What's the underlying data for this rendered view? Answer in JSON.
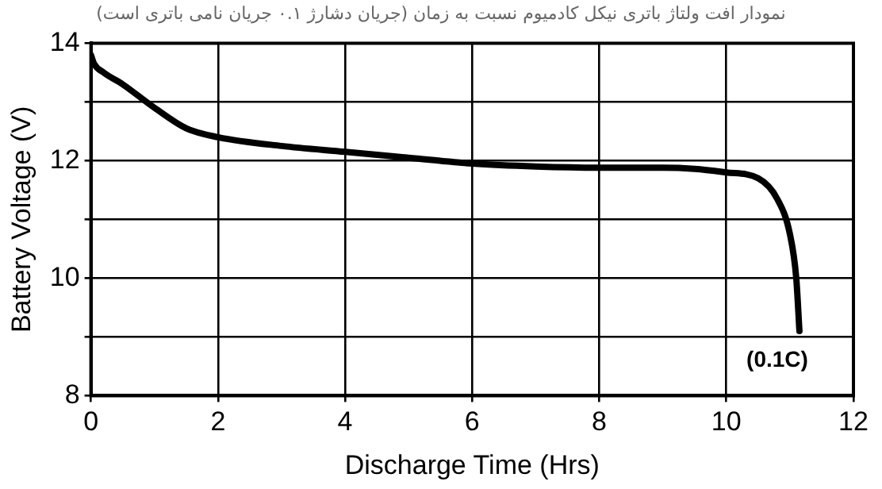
{
  "chart_data": {
    "type": "line",
    "title": "نمودار افت ولتاژ باتری نیکل کادمیوم نسبت به زمان (جریان دشارژ ۰.۱ جریان نامی باتری است)",
    "xlabel": "Discharge Time (Hrs)",
    "ylabel": "Battery Voltage (V)",
    "series": [
      {
        "color": "#000000",
        "x": [
          0,
          0.05,
          0.2,
          0.5,
          1,
          1.5,
          2,
          3,
          4,
          5,
          6,
          7,
          8,
          9,
          9.5,
          10,
          10.5,
          10.8,
          11,
          11.1,
          11.15
        ],
        "values": [
          13.8,
          13.65,
          13.5,
          13.3,
          12.9,
          12.55,
          12.4,
          12.25,
          12.15,
          12.05,
          11.95,
          11.9,
          11.88,
          11.88,
          11.86,
          11.8,
          11.7,
          11.35,
          10.75,
          10.0,
          9.1
        ]
      }
    ],
    "xlim": [
      0,
      12
    ],
    "xticks": [
      0,
      2,
      4,
      6,
      8,
      10,
      12
    ],
    "ylim": [
      8,
      14
    ],
    "yticks": [
      8,
      {
        "value": 9,
        "label": null
      },
      10,
      {
        "value": 11,
        "label": null
      },
      12,
      {
        "value": 13,
        "label": null
      },
      14
    ],
    "grid": true,
    "legend": false,
    "marker": "none",
    "line_style": "solid",
    "annotations": [
      "(0.1C)"
    ]
  }
}
